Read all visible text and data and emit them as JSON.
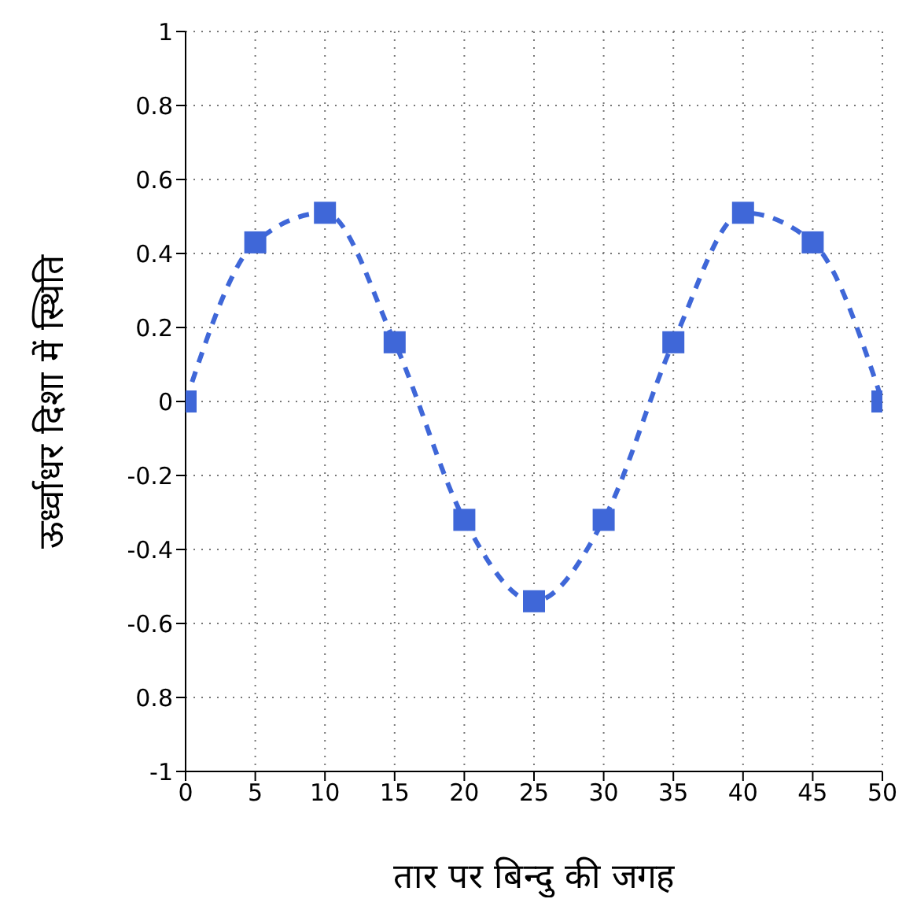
{
  "chart_data": {
    "type": "line",
    "xlabel": "तार पर बिन्दु की जगह",
    "ylabel": "ऊर्ध्वाधर दिशा में स्थिति",
    "x": [
      0,
      5,
      10,
      15,
      20,
      25,
      30,
      35,
      40,
      45,
      50
    ],
    "series": [
      {
        "color": "#3f67d8",
        "values": [
          0,
          0.43,
          0.51,
          0.16,
          -0.32,
          -0.54,
          -0.32,
          0.16,
          0.51,
          0.43,
          0
        ]
      }
    ],
    "xlim": [
      0,
      50
    ],
    "xticks": [
      0,
      5,
      10,
      15,
      20,
      25,
      30,
      35,
      40,
      45,
      50
    ],
    "ylim": [
      -1,
      1
    ],
    "yticks": [
      -1,
      {
        "value": -0.8,
        "label": "0.8"
      },
      -0.6,
      -0.4,
      -0.2,
      0,
      0.2,
      0.4,
      0.6,
      0.8,
      1
    ],
    "grid": true,
    "marker": "square",
    "line_style": "dashed"
  }
}
